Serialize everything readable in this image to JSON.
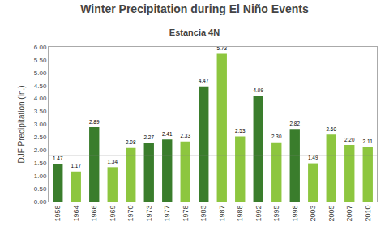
{
  "chart_data": {
    "type": "bar",
    "title": "Winter Precipitation during El Niño Events",
    "subtitle": "Estancia 4N",
    "ylabel": "DJF Precipitation (in.)",
    "categories": [
      "1958",
      "1964",
      "1966",
      "1969",
      "1970",
      "1973",
      "1977",
      "1978",
      "1983",
      "1987",
      "1988",
      "1992",
      "1995",
      "1998",
      "2003",
      "2005",
      "2007",
      "2010"
    ],
    "values": [
      1.47,
      1.17,
      2.89,
      1.34,
      2.08,
      2.27,
      2.41,
      2.33,
      4.47,
      5.73,
      2.53,
      4.09,
      2.3,
      2.82,
      1.49,
      2.6,
      2.2,
      2.11
    ],
    "value_labels": [
      "1.47",
      "1.17",
      "2.89",
      "1.34",
      "2.08",
      "2.27",
      "2.41",
      "2.33",
      "4.47",
      "5.73",
      "2.53",
      "4.09",
      "2.30",
      "2.82",
      "1.49",
      "2.60",
      "2.20",
      "2.11"
    ],
    "colors": [
      "#3a7d2c",
      "#8dc63f",
      "#3a7d2c",
      "#8dc63f",
      "#8dc63f",
      "#3a7d2c",
      "#3a7d2c",
      "#8dc63f",
      "#3a7d2c",
      "#8dc63f",
      "#8dc63f",
      "#3a7d2c",
      "#8dc63f",
      "#3a7d2c",
      "#8dc63f",
      "#8dc63f",
      "#8dc63f",
      "#8dc63f"
    ],
    "data_labels": true,
    "mean_line": 1.8,
    "mean_line_color": "#7f7f7f",
    "ylim": [
      0.0,
      6.0
    ],
    "yticks": [
      {
        "value": 0.0,
        "label": "0.00"
      },
      {
        "value": 0.5,
        "label": "0.50"
      },
      {
        "value": 1.0,
        "label": "1.00"
      },
      {
        "value": 1.5,
        "label": "1.50"
      },
      {
        "value": 2.0,
        "label": "2.00"
      },
      {
        "value": 2.5,
        "label": "2.50"
      },
      {
        "value": 3.0,
        "label": "3.00"
      },
      {
        "value": 3.5,
        "label": "3.50"
      },
      {
        "value": 4.0,
        "label": "4.00"
      },
      {
        "value": 4.5,
        "label": "4.50"
      },
      {
        "value": 5.0,
        "label": "5.00"
      },
      {
        "value": 5.5,
        "label": "5.50"
      },
      {
        "value": 6.0,
        "label": "6.00"
      }
    ],
    "grid": false
  }
}
